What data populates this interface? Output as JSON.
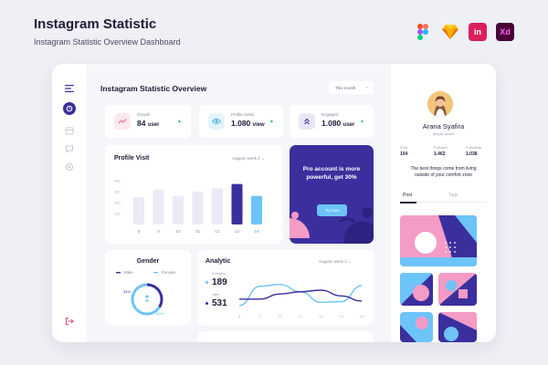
{
  "header": {
    "title": "Instagram Statistic",
    "subtitle": "Instagram Statistic Overview Dashboard",
    "tools": [
      {
        "name": "figma-icon"
      },
      {
        "name": "sketch-icon"
      },
      {
        "name": "invision-icon",
        "label": "in"
      },
      {
        "name": "adobe-xd-icon",
        "label": "Xd"
      }
    ]
  },
  "dashboard": {
    "title": "Instagram Statistic Overview",
    "period": "This month",
    "stats": [
      {
        "label": "Growth",
        "value": "84",
        "unit": "user",
        "icon": "trend-icon",
        "accent": "#f25c8d"
      },
      {
        "label": "Profile views",
        "value": "1.080",
        "unit": "view",
        "icon": "eye-icon",
        "accent": "#3fa9e0"
      },
      {
        "label": "Engaged",
        "value": "1.080",
        "unit": "user",
        "icon": "chevrons-up-icon",
        "accent": "#3b2f9e"
      }
    ],
    "profile_visit": {
      "title": "Profile Visit",
      "period": "August, week 2"
    },
    "promo": {
      "text": "Pro account is more powerful, get 30%",
      "button": "Try now"
    },
    "gender": {
      "title": "Gender",
      "legend_male": "Male",
      "legend_female": "Female",
      "male_pct": "34%",
      "female_pct": "66%"
    },
    "analytic": {
      "title": "Analytic",
      "period": "August, week 2",
      "followers_label": "Followers",
      "followers_value": "189",
      "likes_label": "Likes",
      "likes_value": "531"
    }
  },
  "chart_data": [
    {
      "type": "bar",
      "title": "Profile Visit",
      "categories": [
        "8",
        "9",
        "10",
        "11",
        "12",
        "13",
        "14"
      ],
      "values": [
        250,
        320,
        260,
        300,
        330,
        370,
        260
      ],
      "y_ticks": [
        "400",
        "300",
        "200",
        "100"
      ],
      "ylim": [
        0,
        400
      ],
      "highlight": {
        "13": "#3b2f9e",
        "14": "#6cc4f8"
      },
      "colors": {
        "default": "#eceaf6",
        "highlight": "#3b2f9e",
        "secondary": "#6cc4f8"
      },
      "grid": false
    },
    {
      "type": "line",
      "title": "Analytic",
      "x": [
        "8",
        "9",
        "10",
        "11",
        "12",
        "13",
        "14"
      ],
      "series": [
        {
          "name": "Followers",
          "values": [
            0.12,
            0.72,
            0.78,
            0.55,
            0.22,
            0.24,
            0.74
          ],
          "color": "#6cc4f8"
        },
        {
          "name": "Likes",
          "values": [
            0.32,
            0.32,
            0.48,
            0.55,
            0.6,
            0.42,
            0.26
          ],
          "color": "#3b2f9e"
        }
      ],
      "grid": false
    },
    {
      "type": "pie",
      "title": "Gender",
      "slices": [
        {
          "name": "Male",
          "value": 34,
          "color": "#3b2f9e"
        },
        {
          "name": "Female",
          "value": 66,
          "color": "#6cc4f8"
        }
      ]
    }
  ],
  "profile": {
    "name": "Arana Syafira",
    "handle": "@syaf_arana",
    "stats": [
      {
        "label": "Post",
        "value": "104"
      },
      {
        "label": "Follower",
        "value": "1.462"
      },
      {
        "label": "Following",
        "value": "1.038"
      }
    ],
    "bio": "The best things come from living outside of your comfort zone",
    "tabs": [
      "Post",
      "Tags"
    ]
  },
  "colors": {
    "primary": "#3b2f9e",
    "accent_blue": "#6cc4f8",
    "accent_pink": "#f49bc6",
    "background": "#eef0f5"
  }
}
